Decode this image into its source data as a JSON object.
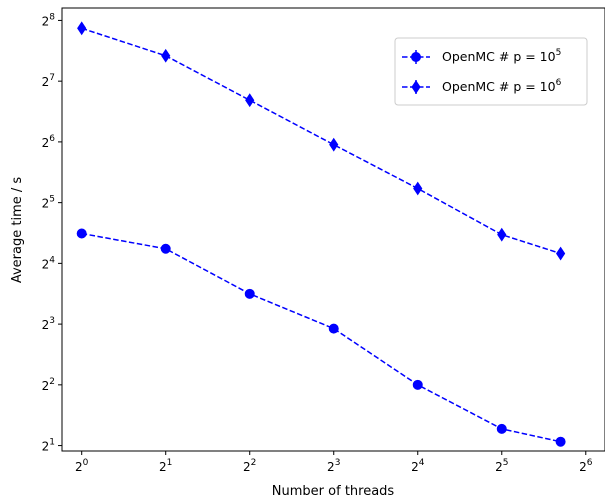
{
  "chart_data": {
    "type": "line",
    "title": "",
    "xlabel": "Number of threads",
    "ylabel": "Average time / s",
    "x_scale": "log2",
    "y_scale": "log2",
    "xlim": [
      0.85,
      75
    ],
    "ylim": [
      1.88,
      295
    ],
    "x_ticks": [
      1,
      2,
      4,
      8,
      16,
      32,
      64
    ],
    "x_tick_exponents": [
      "0",
      "1",
      "2",
      "3",
      "4",
      "5",
      "6"
    ],
    "y_ticks": [
      2,
      4,
      8,
      16,
      32,
      64,
      128,
      256
    ],
    "y_tick_exponents": [
      "1",
      "2",
      "3",
      "4",
      "5",
      "6",
      "7",
      "8"
    ],
    "tick_base": "2",
    "grid": false,
    "legend_position": "top-right",
    "color": "#0000ff",
    "x": [
      1,
      2,
      4,
      8,
      16,
      32,
      52
    ],
    "series": [
      {
        "name": "OpenMC # p = 10",
        "name_exponent": "5",
        "marker": "circle",
        "values": [
          22.5,
          18.9,
          11.3,
          7.6,
          4.0,
          2.42,
          2.09
        ]
      },
      {
        "name": "OpenMC # p = 10",
        "name_exponent": "6",
        "marker": "diamond",
        "values": [
          234,
          171,
          103,
          62,
          37.6,
          22.2,
          17.9
        ]
      }
    ]
  }
}
